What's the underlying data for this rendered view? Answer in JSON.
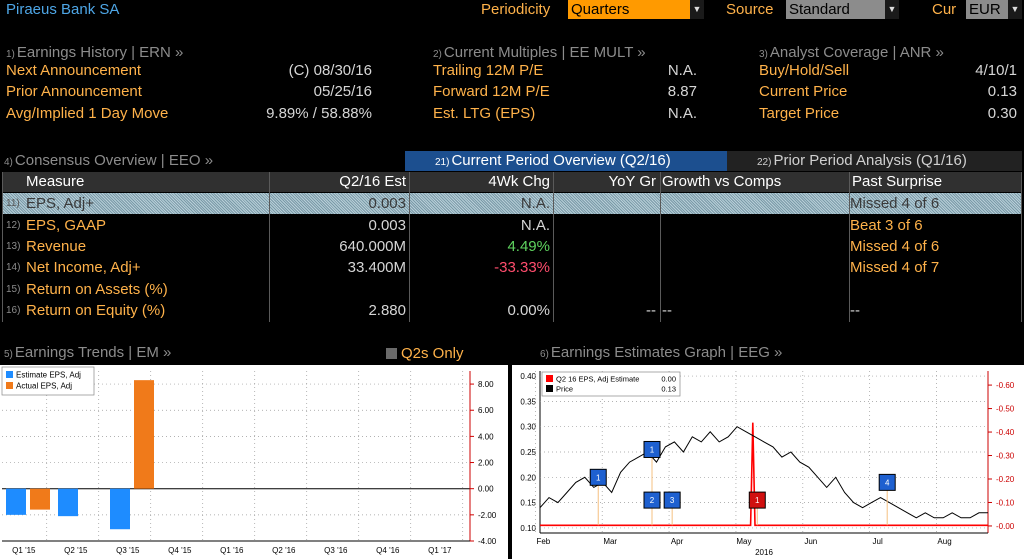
{
  "header": {
    "company": "Piraeus Bank SA",
    "periodicity_label": "Periodicity",
    "periodicity_value": "Quarters",
    "source_label": "Source",
    "source_value": "Standard",
    "currency_label": "Cur",
    "currency_value": "EUR"
  },
  "earnings_history": {
    "num": "1)",
    "title": "Earnings History | ERN »",
    "rows": [
      {
        "label": "Next Announcement",
        "value": "(C)  08/30/16"
      },
      {
        "label": "Prior Announcement",
        "value": "05/25/16"
      },
      {
        "label": "Avg/Implied 1 Day Move",
        "value": "9.89% / 58.88%"
      }
    ]
  },
  "current_multiples": {
    "num": "2)",
    "title": "Current Multiples | EE MULT »",
    "rows": [
      {
        "label": "Trailing 12M P/E",
        "value": "N.A."
      },
      {
        "label": "Forward 12M P/E",
        "value": "8.87"
      },
      {
        "label": "Est. LTG (EPS)",
        "value": "N.A."
      }
    ]
  },
  "analyst_coverage": {
    "num": "3)",
    "title": "Analyst Coverage | ANR »",
    "rows": [
      {
        "label": "Buy/Hold/Sell",
        "value": "4/10/1"
      },
      {
        "label": "Current Price",
        "value": "0.13"
      },
      {
        "label": "Target Price",
        "value": "0.30"
      }
    ]
  },
  "consensus": {
    "num": "4)",
    "title": "Consensus Overview | EEO »",
    "tabs": [
      {
        "num": "21)",
        "label": "Current Period Overview (Q2/16)"
      },
      {
        "num": "22)",
        "label": "Prior Period Analysis (Q1/16)"
      }
    ],
    "columns": [
      "Measure",
      "Q2/16 Est",
      "4Wk Chg",
      "YoY Gr",
      "Growth vs Comps",
      "Past Surprise"
    ],
    "rows": [
      {
        "num": "11)",
        "measure": "EPS, Adj+",
        "est": "0.003",
        "chg": "N.A.",
        "yoy": "",
        "comps": "",
        "surprise": "Missed 4 of 6"
      },
      {
        "num": "12)",
        "measure": "EPS, GAAP",
        "est": "0.003",
        "chg": "N.A.",
        "yoy": "",
        "comps": "",
        "surprise": "Beat 3 of 6"
      },
      {
        "num": "13)",
        "measure": "Revenue",
        "est": "640.000M",
        "chg": "4.49%",
        "yoy": "",
        "comps": "",
        "surprise": "Missed 4 of 6"
      },
      {
        "num": "14)",
        "measure": "Net Income, Adj+",
        "est": "33.400M",
        "chg": "-33.33%",
        "yoy": "",
        "comps": "",
        "surprise": "Missed 4 of 7"
      },
      {
        "num": "15)",
        "measure": "Return on Assets (%)",
        "est": "",
        "chg": "",
        "yoy": "",
        "comps": "",
        "surprise": ""
      },
      {
        "num": "16)",
        "measure": "Return on Equity (%)",
        "est": "2.880",
        "chg": "0.00%",
        "yoy": "--",
        "comps": "--",
        "surprise": "--"
      }
    ],
    "colors": {
      "positive": "#5fd35f",
      "negative": "#ff4d6d"
    }
  },
  "earnings_trends": {
    "num": "5)",
    "title": "Earnings Trends | EM »",
    "toggle_label": "Q2s Only"
  },
  "estimates_graph": {
    "num": "6)",
    "title": "Earnings Estimates Graph | EEG »"
  },
  "chart_data": [
    {
      "type": "bar",
      "categories": [
        "Q1 '15",
        "Q2 '15",
        "Q3 '15",
        "Q4 '15",
        "Q1 '16",
        "Q2 '16",
        "Q3 '16",
        "Q4 '16",
        "Q1 '17"
      ],
      "series": [
        {
          "name": "Estimate EPS, Adj",
          "color": "#1e8cff",
          "values": [
            -2.0,
            -2.1,
            -3.1,
            null,
            null,
            null,
            null,
            null,
            null
          ]
        },
        {
          "name": "Actual EPS, Adj",
          "color": "#f07a1a",
          "values": [
            -1.6,
            null,
            8.3,
            null,
            null,
            null,
            null,
            null,
            null
          ]
        }
      ],
      "yticks": [
        "8.00",
        "6.00",
        "4.00",
        "2.00",
        "0.00",
        "-2.00",
        "-4.00"
      ],
      "ylim": [
        -4,
        9
      ],
      "legend": "top-left"
    },
    {
      "type": "line",
      "x_labels": [
        "Feb",
        "Mar",
        "Apr",
        "May",
        "Jun",
        "Jul",
        "Aug"
      ],
      "year_label": "2016",
      "left_ticks": [
        "0.40",
        "0.35",
        "0.30",
        "0.25",
        "0.20",
        "0.15",
        "0.10"
      ],
      "right_ticks": [
        "0.60",
        "0.50",
        "0.40",
        "0.30",
        "0.20",
        "0.10",
        "0.00"
      ],
      "left_ylim": [
        0.09,
        0.41
      ],
      "right_ylim": [
        -0.03,
        0.66
      ],
      "series": [
        {
          "name": "Q2 16 EPS, Adj Estimate",
          "value_label": "0.00",
          "color": "#ff0000",
          "axis": "right",
          "x": [
            0,
            0.2,
            0.2,
            0.42,
            0.42,
            0.46,
            0.47,
            0.475,
            0.48,
            0.49,
            0.5,
            1.0
          ],
          "values": [
            0.003,
            0.003,
            0.003,
            0.003,
            0.003,
            0.003,
            0.003,
            0.44,
            0.003,
            0.003,
            0.003,
            0.003
          ]
        },
        {
          "name": "Price",
          "value_label": "0.13",
          "color": "#000000",
          "axis": "left",
          "x": [
            0,
            0.02,
            0.04,
            0.06,
            0.08,
            0.1,
            0.12,
            0.14,
            0.16,
            0.18,
            0.2,
            0.22,
            0.24,
            0.26,
            0.28,
            0.3,
            0.32,
            0.34,
            0.36,
            0.38,
            0.4,
            0.42,
            0.44,
            0.46,
            0.48,
            0.5,
            0.52,
            0.54,
            0.56,
            0.58,
            0.6,
            0.62,
            0.64,
            0.66,
            0.68,
            0.7,
            0.72,
            0.74,
            0.76,
            0.78,
            0.8,
            0.82,
            0.84,
            0.86,
            0.88,
            0.9,
            0.92,
            0.94,
            0.96,
            0.98,
            1.0
          ],
          "values": [
            0.14,
            0.16,
            0.15,
            0.17,
            0.19,
            0.2,
            0.18,
            0.19,
            0.17,
            0.21,
            0.23,
            0.24,
            0.25,
            0.23,
            0.26,
            0.27,
            0.25,
            0.28,
            0.27,
            0.29,
            0.27,
            0.28,
            0.3,
            0.29,
            0.28,
            0.27,
            0.26,
            0.24,
            0.25,
            0.23,
            0.22,
            0.2,
            0.18,
            0.2,
            0.17,
            0.15,
            0.14,
            0.15,
            0.16,
            0.15,
            0.14,
            0.13,
            0.12,
            0.13,
            0.12,
            0.12,
            0.13,
            0.12,
            0.12,
            0.13,
            0.13
          ]
        }
      ],
      "markers": [
        {
          "label": "1",
          "color": "#1e60d0",
          "x": 0.13,
          "value": 0.2
        },
        {
          "label": "1",
          "color": "#1e60d0",
          "x": 0.25,
          "value": 0.255
        },
        {
          "label": "2",
          "color": "#1e60d0",
          "x": 0.25,
          "value": 0.155
        },
        {
          "label": "3",
          "color": "#1e60d0",
          "x": 0.295,
          "value": 0.155
        },
        {
          "label": "1",
          "color": "#d01010",
          "x": 0.485,
          "value": 0.155
        },
        {
          "label": "4",
          "color": "#1e60d0",
          "x": 0.775,
          "value": 0.19
        }
      ],
      "legend": "top-left"
    }
  ]
}
